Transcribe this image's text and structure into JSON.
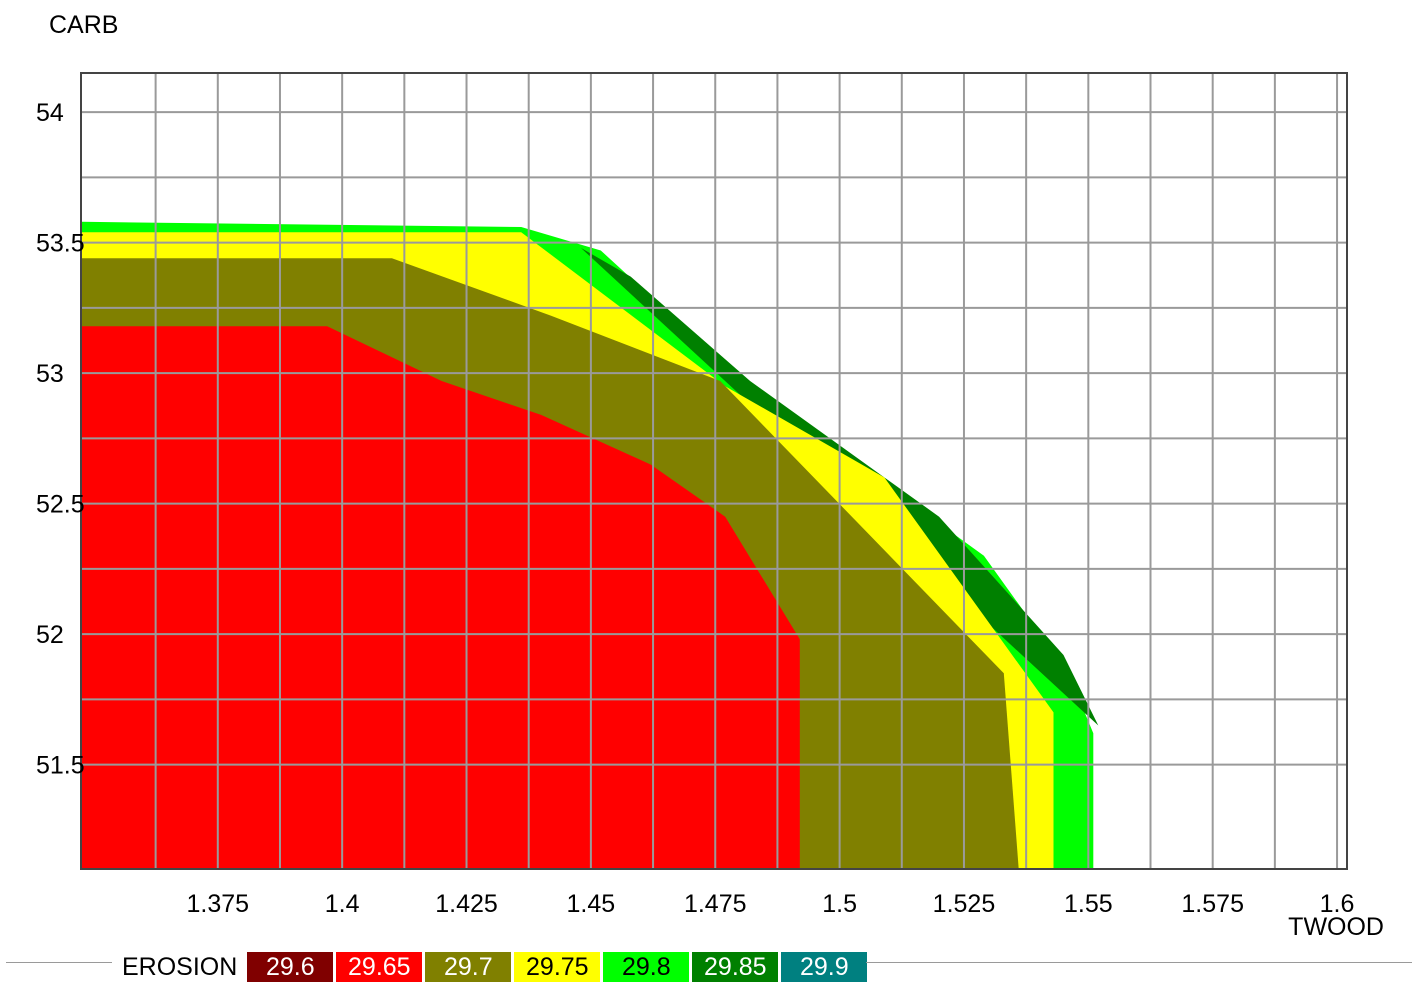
{
  "chart_data": {
    "type": "heatmap",
    "title": "",
    "xlabel": "TWOOD",
    "ylabel": "CARB",
    "xlim": [
      1.3475,
      1.602
    ],
    "ylim": [
      51.1,
      54.15
    ],
    "xticks": [
      1.375,
      1.4,
      1.425,
      1.45,
      1.475,
      1.5,
      1.525,
      1.55,
      1.575,
      1.6
    ],
    "xtick_labels": [
      "1.375",
      "1.4",
      "1.425",
      "1.45",
      "1.475",
      "1.5",
      "1.525",
      "1.55",
      "1.575",
      "1.6"
    ],
    "yticks": [
      51.5,
      52,
      52.5,
      53,
      53.5,
      54
    ],
    "ytick_labels": [
      "51.5",
      "52",
      "52.5",
      "53",
      "53.5",
      "54"
    ],
    "grid": true,
    "legend": {
      "title": "EROSION",
      "position": "bottom",
      "entries": [
        {
          "label": "29.6",
          "color": "#800000"
        },
        {
          "label": "29.65",
          "color": "#ff0000"
        },
        {
          "label": "29.7",
          "color": "#808000"
        },
        {
          "label": "29.75",
          "color": "#ffff00"
        },
        {
          "label": "29.8",
          "color": "#00ff00"
        },
        {
          "label": "29.85",
          "color": "#008000"
        },
        {
          "label": "29.9",
          "color": "#008080"
        }
      ]
    },
    "regions": [
      {
        "level": "29.8",
        "color": "#00ff00",
        "boundary": [
          [
            1.3475,
            53.58
          ],
          [
            1.436,
            53.56
          ],
          [
            1.452,
            53.47
          ],
          [
            1.46,
            53.33
          ],
          [
            1.477,
            53.0
          ],
          [
            1.5,
            52.7
          ],
          [
            1.529,
            52.3
          ],
          [
            1.546,
            51.85
          ],
          [
            1.551,
            51.62
          ],
          [
            1.551,
            51.1
          ]
        ]
      },
      {
        "level": "29.85",
        "color": "#008000",
        "boundary": [
          [
            1.448,
            53.48
          ],
          [
            1.458,
            53.37
          ],
          [
            1.482,
            52.97
          ],
          [
            1.52,
            52.45
          ],
          [
            1.545,
            51.92
          ],
          [
            1.552,
            51.65
          ]
        ]
      },
      {
        "level": "29.75",
        "color": "#ffff00",
        "boundary": [
          [
            1.3475,
            53.54
          ],
          [
            1.436,
            53.54
          ],
          [
            1.477,
            52.95
          ],
          [
            1.509,
            52.6
          ],
          [
            1.543,
            51.7
          ],
          [
            1.543,
            51.1
          ]
        ]
      },
      {
        "level": "29.7",
        "color": "#808000",
        "boundary": [
          [
            1.3475,
            53.44
          ],
          [
            1.41,
            53.44
          ],
          [
            1.442,
            53.22
          ],
          [
            1.476,
            52.97
          ],
          [
            1.533,
            51.85
          ],
          [
            1.536,
            51.1
          ]
        ]
      },
      {
        "level": "29.65",
        "color": "#ff0000",
        "boundary": [
          [
            1.3475,
            53.18
          ],
          [
            1.397,
            53.18
          ],
          [
            1.42,
            52.97
          ],
          [
            1.44,
            52.84
          ],
          [
            1.462,
            52.65
          ],
          [
            1.477,
            52.45
          ],
          [
            1.492,
            51.98
          ],
          [
            1.492,
            51.1
          ]
        ]
      }
    ]
  }
}
